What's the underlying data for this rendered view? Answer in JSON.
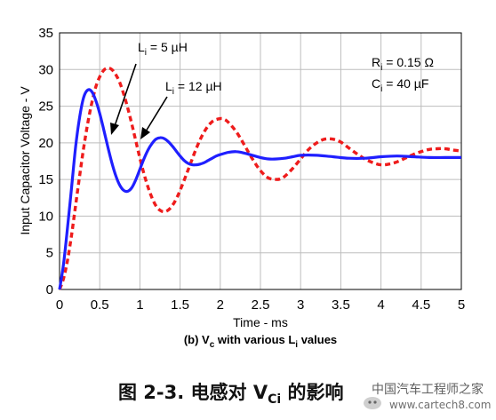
{
  "chart_data": {
    "type": "line",
    "title": "",
    "subtitle": "(b) V",
    "subtitle_sub": "c",
    "subtitle_rest": " with various L",
    "subtitle_sub2": "i",
    "subtitle_end": " values",
    "xlabel": "Time - ms",
    "ylabel": "Input Capacitor Voltage - V",
    "xlim": [
      0,
      5
    ],
    "ylim": [
      0,
      35
    ],
    "x_ticks": [
      "0",
      "0.5",
      "1",
      "1.5",
      "2",
      "2.5",
      "3",
      "3.5",
      "4",
      "4.5",
      "5"
    ],
    "y_ticks": [
      "0",
      "5",
      "10",
      "15",
      "20",
      "25",
      "30",
      "35"
    ],
    "grid": true,
    "series": [
      {
        "name": "Li = 5 µH",
        "label_main": "L",
        "label_sub": "i",
        "label_rest": " = 5 µH",
        "color": "#1f1fff",
        "style": "solid",
        "x": [
          0,
          0.05,
          0.1,
          0.15,
          0.2,
          0.25,
          0.3,
          0.35,
          0.4,
          0.45,
          0.5,
          0.55,
          0.6,
          0.65,
          0.7,
          0.75,
          0.8,
          0.85,
          0.9,
          0.95,
          1.0,
          1.05,
          1.1,
          1.15,
          1.2,
          1.25,
          1.3,
          1.35,
          1.4,
          1.45,
          1.5,
          1.55,
          1.6,
          1.65,
          1.7,
          1.75,
          1.8,
          1.85,
          1.9,
          1.95,
          2.0,
          2.1,
          2.2,
          2.3,
          2.4,
          2.5,
          2.6,
          2.7,
          2.8,
          2.9,
          3.0,
          3.2,
          3.4,
          3.6,
          3.8,
          4.0,
          4.2,
          4.4,
          4.6,
          4.8,
          5.0
        ],
        "y": [
          0,
          3.5,
          8.5,
          14,
          19.5,
          23.5,
          26.2,
          27.2,
          27.0,
          25.8,
          24.0,
          21.8,
          19.5,
          17.3,
          15.5,
          14.2,
          13.5,
          13.4,
          13.9,
          15.0,
          16.4,
          17.8,
          19.0,
          19.9,
          20.5,
          20.7,
          20.6,
          20.2,
          19.6,
          18.9,
          18.2,
          17.6,
          17.2,
          17.0,
          17.0,
          17.1,
          17.3,
          17.6,
          17.9,
          18.2,
          18.4,
          18.7,
          18.8,
          18.6,
          18.3,
          18.0,
          17.8,
          17.8,
          17.9,
          18.1,
          18.3,
          18.3,
          18.1,
          17.9,
          17.9,
          18.1,
          18.2,
          18.1,
          18.0,
          18.0,
          18.0
        ]
      },
      {
        "name": "Li = 12 µH",
        "label_main": "L",
        "label_sub": "i",
        "label_rest": " = 12 µH",
        "color": "#ee1c1c",
        "style": "dashed",
        "x": [
          0,
          0.05,
          0.1,
          0.15,
          0.2,
          0.25,
          0.3,
          0.35,
          0.4,
          0.45,
          0.5,
          0.55,
          0.6,
          0.65,
          0.7,
          0.75,
          0.8,
          0.85,
          0.9,
          0.95,
          1.0,
          1.05,
          1.1,
          1.15,
          1.2,
          1.25,
          1.3,
          1.35,
          1.4,
          1.45,
          1.5,
          1.6,
          1.7,
          1.8,
          1.9,
          2.0,
          2.05,
          2.1,
          2.2,
          2.3,
          2.4,
          2.5,
          2.6,
          2.7,
          2.75,
          2.8,
          2.9,
          3.0,
          3.1,
          3.2,
          3.3,
          3.4,
          3.5,
          3.6,
          3.7,
          3.8,
          3.9,
          4.0,
          4.1,
          4.2,
          4.3,
          4.4,
          4.5,
          4.6,
          4.7,
          4.8,
          4.9,
          5.0
        ],
        "y": [
          0,
          1.5,
          4.0,
          7.5,
          11.5,
          15.5,
          19.3,
          22.6,
          25.4,
          27.6,
          29.0,
          29.9,
          30.2,
          30.0,
          29.3,
          28.2,
          26.6,
          24.7,
          22.5,
          20.2,
          17.9,
          15.8,
          14.0,
          12.5,
          11.4,
          10.8,
          10.6,
          10.8,
          11.4,
          12.3,
          13.5,
          16.3,
          19.2,
          21.5,
          22.9,
          23.3,
          23.2,
          22.8,
          21.5,
          19.7,
          17.8,
          16.2,
          15.2,
          15.0,
          15.1,
          15.4,
          16.5,
          17.8,
          19.1,
          20.0,
          20.5,
          20.5,
          20.1,
          19.3,
          18.5,
          17.8,
          17.3,
          17.0,
          17.1,
          17.4,
          17.9,
          18.4,
          18.8,
          19.1,
          19.2,
          19.2,
          19.0,
          18.9
        ]
      }
    ],
    "annotations": {
      "ri_main": "R",
      "ri_sub": "i",
      "ri_rest": " = 0.15 Ω",
      "ci_main": "C",
      "ci_sub": "i",
      "ci_rest": " = 40 µF"
    }
  },
  "figure_caption": {
    "prefix": "图 2-3. 电感对 V",
    "sub": "Ci",
    "suffix": " 的影响"
  },
  "watermark": {
    "brand": "中国汽车工程师之家",
    "url": "www.cartech8.com"
  },
  "colors": {
    "grid": "#bdbdbd",
    "axis": "#000000",
    "series1": "#1f1fff",
    "series2": "#ee1c1c"
  }
}
